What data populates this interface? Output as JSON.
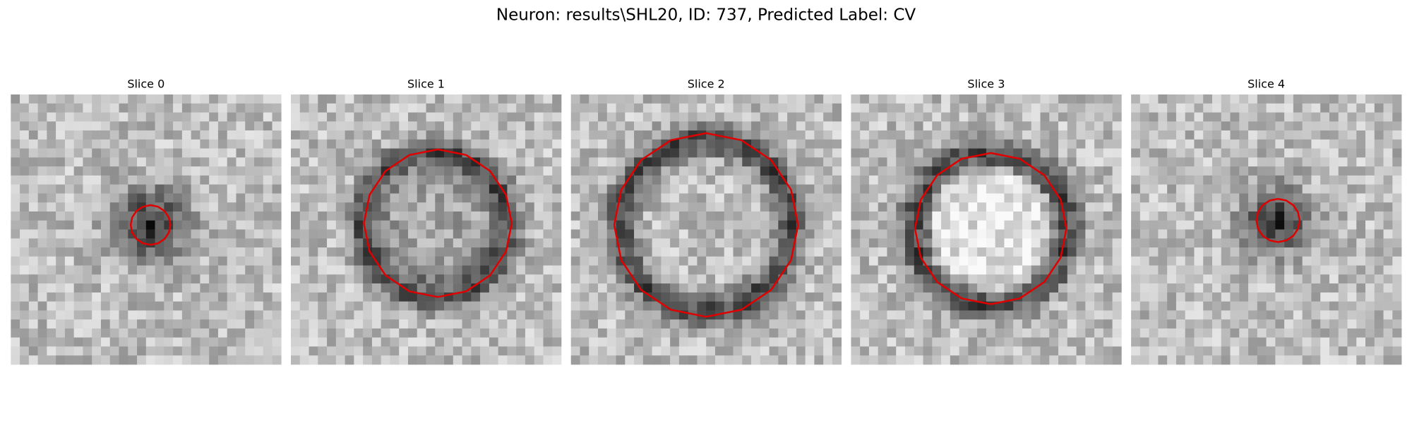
{
  "title": "Neuron: results\\SHL20, ID: 737, Predicted Label: CV",
  "panels": [
    {
      "title": "Slice 0"
    },
    {
      "title": "Slice 1"
    },
    {
      "title": "Slice 2"
    },
    {
      "title": "Slice 3"
    },
    {
      "title": "Slice 4"
    }
  ]
}
